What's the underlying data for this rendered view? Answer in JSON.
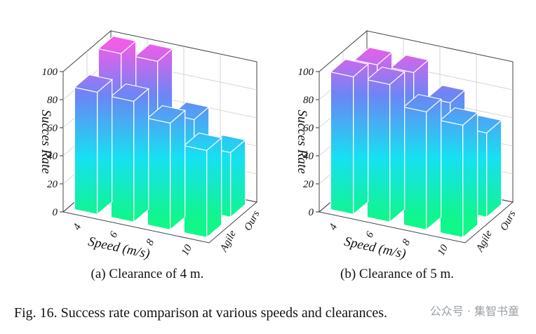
{
  "figure_caption": "Fig. 16. Success rate comparison at various speeds and clearances.",
  "watermark": "公众号 · 集智书童",
  "chart_data": [
    {
      "type": "bar3d",
      "subcaption": "(a) Clearance of 4 m.",
      "zlabel": "Succes Rate",
      "xlabel": "Speed (m/s)",
      "zlim": [
        0,
        100
      ],
      "z_ticks": [
        "0",
        "20",
        "40",
        "60",
        "80",
        "100"
      ],
      "categories": [
        "4",
        "6",
        "8",
        "10"
      ],
      "series": [
        {
          "name": "Agile",
          "values": [
            87,
            86,
            76,
            62
          ]
        },
        {
          "name": "Ours",
          "values": [
            100,
            100,
            64,
            46
          ]
        }
      ]
    },
    {
      "type": "bar3d",
      "subcaption": "(b) Clearance of 5 m.",
      "zlabel": "Succes Rate",
      "xlabel": "Speed (m/s)",
      "zlim": [
        0,
        100
      ],
      "z_ticks": [
        "0",
        "20",
        "40",
        "60",
        "80",
        "100"
      ],
      "categories": [
        "4",
        "6",
        "8",
        "10"
      ],
      "series": [
        {
          "name": "Agile",
          "values": [
            98,
            98,
            84,
            80
          ]
        },
        {
          "name": "Ours",
          "values": [
            92,
            92,
            76,
            60
          ]
        }
      ]
    }
  ]
}
